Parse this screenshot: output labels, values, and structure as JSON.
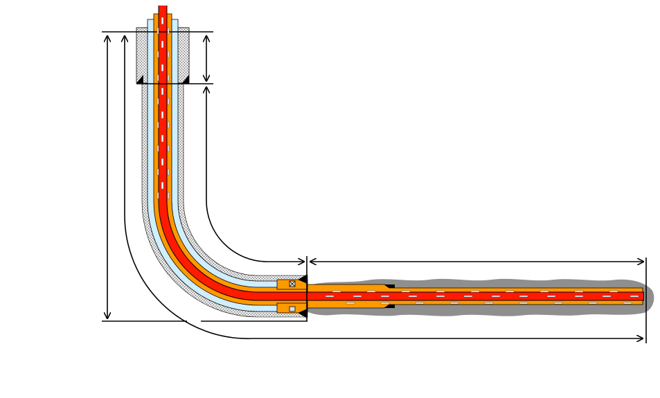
{
  "diagram": {
    "kind": "horizontal well schematic with dimension arrows",
    "labels": []
  },
  "colors": {
    "background": "#ffffff",
    "tubing_core": "#ff1a00",
    "annulus_fluid": "#ff9900",
    "casing_gap": "#cfeefe",
    "cement": "#c9c9c9",
    "formation": "#8f8f8f",
    "outline": "#000000",
    "flow_marker": "#ffffff"
  },
  "icons": {
    "packer": "packer-icon",
    "flow_arrow": "flow-arrow-icon"
  }
}
